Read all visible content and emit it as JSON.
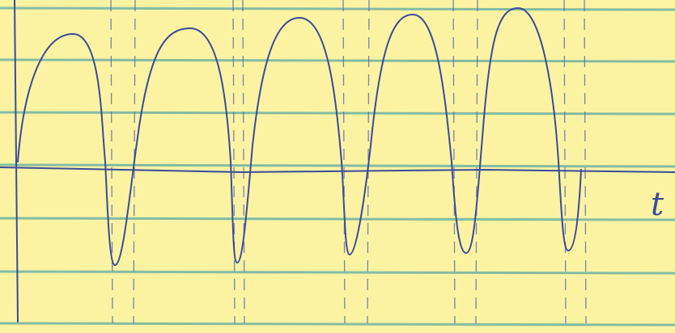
{
  "label": "t"
}
